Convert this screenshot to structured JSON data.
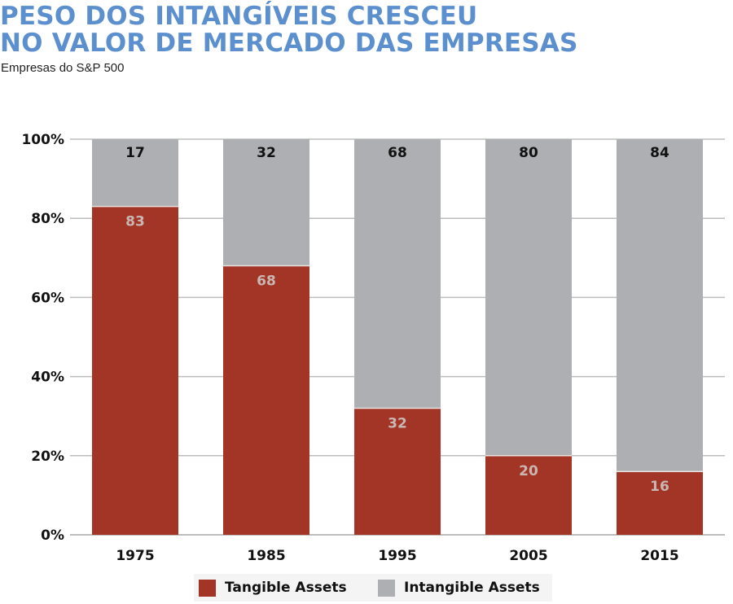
{
  "title_line1": "PESO DOS INTANGÍVEIS CRESCEU",
  "title_line2": "NO VALOR DE MERCADO DAS EMPRESAS",
  "subtitle": "Empresas do S&P 500",
  "colors": {
    "title": "#5b8fce",
    "tangible": "#a33527",
    "intangible": "#aeafb2",
    "grid": "#bdbdbd"
  },
  "chart_data": {
    "type": "bar",
    "stacked": true,
    "categories": [
      "1975",
      "1985",
      "1995",
      "2005",
      "2015"
    ],
    "series": [
      {
        "name": "Tangible Assets",
        "values": [
          83,
          68,
          32,
          20,
          16
        ],
        "color": "#a33527"
      },
      {
        "name": "Intangible Assets",
        "values": [
          17,
          32,
          68,
          80,
          84
        ],
        "color": "#aeafb2"
      }
    ],
    "ylim": [
      0,
      100
    ],
    "yticks": [
      0,
      20,
      40,
      60,
      80,
      100
    ],
    "ytick_labels": [
      "0%",
      "20%",
      "40%",
      "60%",
      "80%",
      "100%"
    ],
    "grid": true,
    "legend_position": "bottom"
  }
}
